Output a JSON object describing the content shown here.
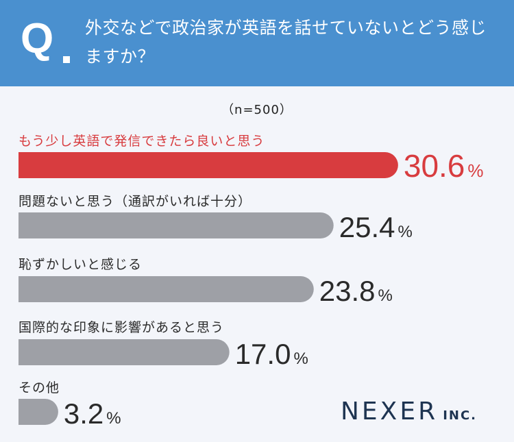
{
  "header": {
    "q_mark": "Q",
    "question": "外交などで政治家が英語を話せていないとどう感じますか？"
  },
  "sample": "（n=500）",
  "colors": {
    "header_bg": "#4a90cf",
    "highlight": "#d83c3f",
    "bar": "#9ea0a6",
    "value_text": "#2a2a2a"
  },
  "chart_data": {
    "type": "bar",
    "orientation": "horizontal",
    "unit": "%",
    "categories": [
      "もう少し英語で発信できたら良いと思う",
      "問題ないと思う（通訳がいれば十分）",
      "恥ずかしいと感じる",
      "国際的な印象に影響があると思う",
      "その他"
    ],
    "values": [
      30.6,
      25.4,
      23.8,
      17.0,
      3.2
    ],
    "value_labels": [
      "30.6",
      "25.4",
      "23.8",
      "17.0",
      "3.2"
    ],
    "highlight_index": 0
  },
  "logo": {
    "main": "NEXER",
    "sub": "INC."
  }
}
